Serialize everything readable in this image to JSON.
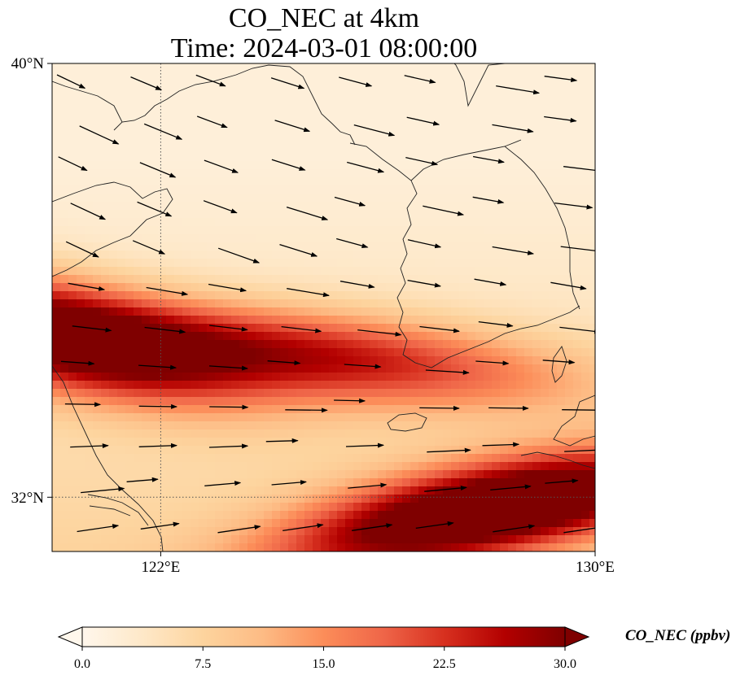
{
  "title": {
    "line1": "CO_NEC at 4km",
    "line2": "Time: 2024-03-01 08:00:00"
  },
  "map": {
    "lat_ticks": [
      {
        "value": 40,
        "label": "40°N"
      },
      {
        "value": 32,
        "label": "32°N"
      }
    ],
    "lon_ticks": [
      {
        "value": 122,
        "label": "122°E"
      },
      {
        "value": 130,
        "label": "130°E"
      }
    ],
    "extent": {
      "lon_min": 120,
      "lon_max": 130,
      "lat_min": 31,
      "lat_max": 40
    },
    "gridlines": "dotted at 122°E and 32°N",
    "field_description": "CO_NEC concentration field with wind vectors",
    "plumes": [
      {
        "lon": 120.0,
        "lat": 35.0,
        "peak_ppbv": 30
      },
      {
        "lon": 125.0,
        "lat": 34.6,
        "peak_ppbv": 20
      },
      {
        "lon": 127.0,
        "lat": 31.6,
        "peak_ppbv": 24
      },
      {
        "lon": 129.5,
        "lat": 32.0,
        "peak_ppbv": 20
      }
    ]
  },
  "colorbar": {
    "label": "CO_NEC (ppbv)",
    "ticks": [
      "0.0",
      "7.5",
      "15.0",
      "22.5",
      "30.0"
    ],
    "min": 0,
    "max": 30,
    "colormap": "OrRd",
    "colors": [
      "#fff7ec",
      "#fee8c8",
      "#fdd49e",
      "#fdbb84",
      "#fc8d59",
      "#ef6548",
      "#d7301f",
      "#b30000",
      "#7f0000"
    ],
    "extend": "both"
  }
}
